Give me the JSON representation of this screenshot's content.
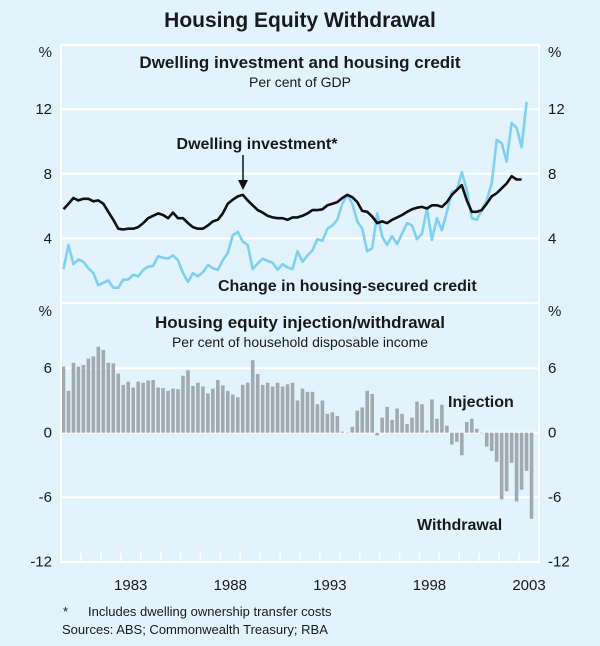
{
  "chart_data": [
    {
      "type": "line",
      "title": "Housing Equity Withdrawal",
      "panel_title": "Dwelling investment and housing credit",
      "panel_subtitle": "Per cent of GDP",
      "ylabel": "%",
      "ylim": [
        0,
        16
      ],
      "yticks": [
        "4",
        "8",
        "12"
      ],
      "ytick_values": [
        4,
        8,
        12
      ],
      "x_start": "1980Q1",
      "x_step": "quarter",
      "grid": true,
      "series": [
        {
          "name": "Dwelling investment*",
          "color": "#111111",
          "values": [
            5.8,
            6.15,
            6.5,
            6.35,
            6.45,
            6.45,
            6.3,
            6.35,
            6.15,
            5.65,
            5.15,
            4.6,
            4.55,
            4.6,
            4.6,
            4.7,
            4.95,
            5.25,
            5.4,
            5.55,
            5.45,
            5.25,
            5.6,
            5.25,
            5.25,
            4.95,
            4.7,
            4.6,
            4.6,
            4.8,
            5.05,
            5.15,
            5.55,
            6.15,
            6.4,
            6.6,
            6.7,
            6.35,
            6.05,
            5.75,
            5.6,
            5.4,
            5.3,
            5.25,
            5.25,
            5.15,
            5.3,
            5.3,
            5.4,
            5.55,
            5.75,
            5.75,
            5.8,
            6.05,
            6.15,
            6.25,
            6.5,
            6.7,
            6.55,
            6.25,
            5.7,
            5.65,
            5.35,
            4.95,
            5.05,
            4.95,
            5.15,
            5.3,
            5.45,
            5.65,
            5.8,
            5.9,
            5.95,
            5.85,
            6.05,
            6.05,
            5.95,
            6.25,
            6.7,
            7.0,
            7.3,
            6.35,
            5.65,
            5.65,
            5.75,
            6.15,
            6.6,
            6.8,
            7.1,
            7.4,
            7.85,
            7.65,
            7.65
          ]
        },
        {
          "name": "Change in housing-secured credit",
          "color": "#7fd0f5",
          "values": [
            2.1,
            3.6,
            2.4,
            2.7,
            2.55,
            2.15,
            1.85,
            1.1,
            1.25,
            1.4,
            0.95,
            0.95,
            1.45,
            1.45,
            1.75,
            1.65,
            2.05,
            2.25,
            2.3,
            2.9,
            2.8,
            2.75,
            2.95,
            2.65,
            1.85,
            1.3,
            1.85,
            1.65,
            1.9,
            2.35,
            2.15,
            2.05,
            2.65,
            3.1,
            4.2,
            4.4,
            3.8,
            3.6,
            2.1,
            2.45,
            2.75,
            2.6,
            2.5,
            2.05,
            2.4,
            2.2,
            2.1,
            3.2,
            2.55,
            2.95,
            3.25,
            3.95,
            3.85,
            4.6,
            4.8,
            5.15,
            6.15,
            6.7,
            6.15,
            5.05,
            4.6,
            3.2,
            3.4,
            5.55,
            4.1,
            3.6,
            4.15,
            3.65,
            4.3,
            4.95,
            4.8,
            3.95,
            4.3,
            5.85,
            3.9,
            5.25,
            4.5,
            5.65,
            6.9,
            7.0,
            8.1,
            7.0,
            5.25,
            5.15,
            5.75,
            6.35,
            7.4,
            10.1,
            9.9,
            8.75,
            11.15,
            10.85,
            9.65,
            12.45
          ]
        }
      ],
      "annotations": [
        "Dwelling investment*",
        "Change in housing-secured credit"
      ]
    },
    {
      "type": "bar",
      "panel_title": "Housing equity injection/withdrawal",
      "panel_subtitle": "Per cent of household disposable income",
      "ylabel": "%",
      "ylim": [
        -12,
        12
      ],
      "yticks": [
        "6",
        "0",
        "-6",
        "-12"
      ],
      "ytick_values": [
        6,
        0,
        -6,
        -12
      ],
      "x_start": "1980Q1",
      "x_step": "quarter",
      "xticks": [
        "1983",
        "1988",
        "1993",
        "1998",
        "2003"
      ],
      "grid": true,
      "series": [
        {
          "name": "Housing equity injection/withdrawal",
          "color": "#a2aaaf",
          "values": [
            6.15,
            3.9,
            6.5,
            6.15,
            6.3,
            6.9,
            7.1,
            8.0,
            7.7,
            6.5,
            6.45,
            5.5,
            4.45,
            4.75,
            4.2,
            4.75,
            4.65,
            4.85,
            4.9,
            4.2,
            4.15,
            3.9,
            4.1,
            4.05,
            5.3,
            5.8,
            4.35,
            4.65,
            4.3,
            3.65,
            4.1,
            4.9,
            4.4,
            3.9,
            3.55,
            3.3,
            4.45,
            4.65,
            6.75,
            5.45,
            4.45,
            4.65,
            4.3,
            4.65,
            4.3,
            4.5,
            4.65,
            3.0,
            4.1,
            3.8,
            3.8,
            2.65,
            3.0,
            1.75,
            1.9,
            1.55,
            0.1,
            0,
            0.55,
            2.05,
            2.35,
            3.9,
            3.6,
            -0.25,
            1.4,
            2.4,
            1.2,
            2.25,
            1.75,
            0.8,
            1.4,
            2.9,
            2.65,
            0.2,
            3.1,
            1.3,
            2.6,
            0.65,
            -1.1,
            -0.85,
            -2.1,
            1.0,
            1.3,
            0.35,
            0,
            -1.3,
            -1.7,
            -2.7,
            -6.2,
            -5.45,
            -2.8,
            -6.4,
            -5.3,
            -3.55,
            -8.0
          ]
        }
      ],
      "annotations": [
        "Injection",
        "Withdrawal"
      ]
    }
  ],
  "labels": {
    "title": "Housing Equity Withdrawal",
    "top_title": "Dwelling investment and housing credit",
    "top_sub": "Per cent of GDP",
    "bottom_title": "Housing equity injection/withdrawal",
    "bottom_sub": "Per cent of household disposable income",
    "percent": "%",
    "ann_dwelling": "Dwelling investment*",
    "ann_credit": "Change in housing-secured credit",
    "ann_injection": "Injection",
    "ann_withdrawal": "Withdrawal",
    "footnote_star": "*",
    "footnote": "Includes dwelling ownership transfer costs",
    "sources": "Sources: ABS; Commonwealth Treasury; RBA"
  }
}
